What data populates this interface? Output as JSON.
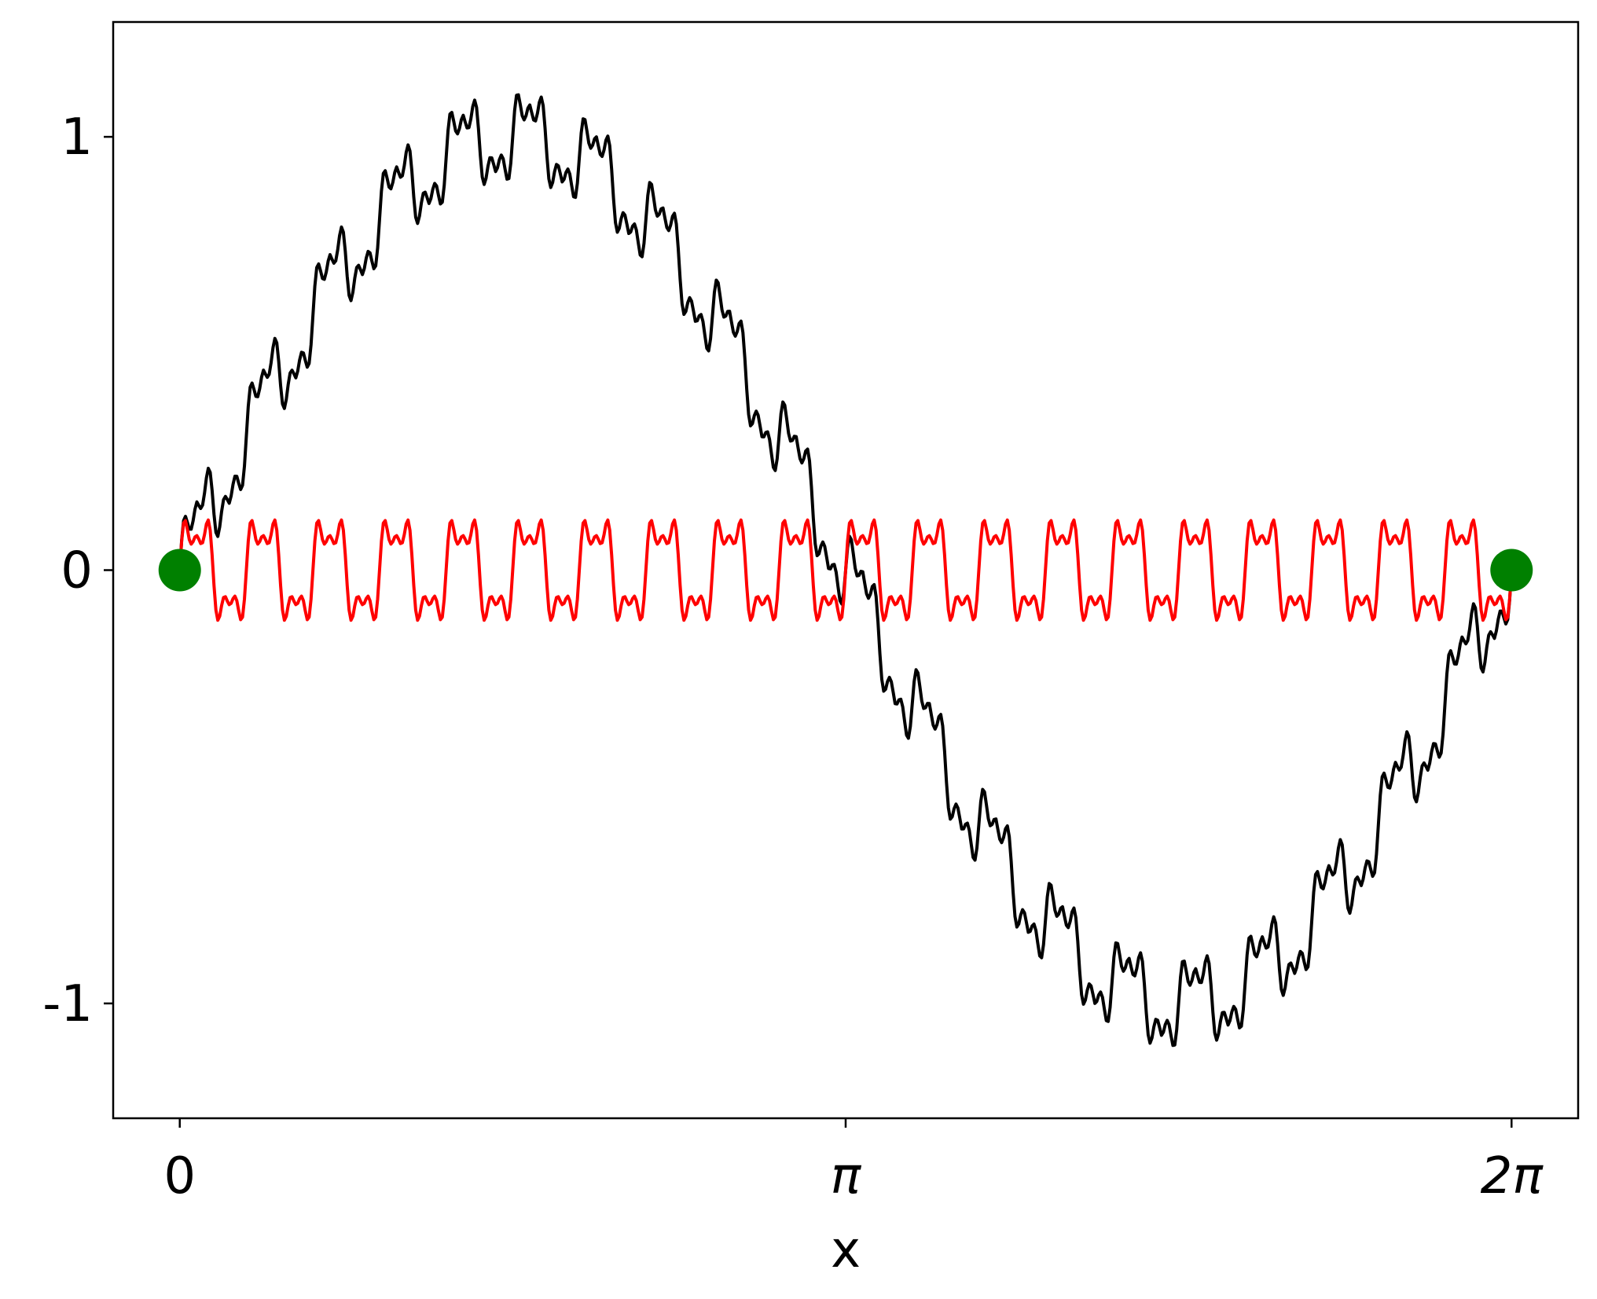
{
  "chart_data": {
    "type": "line",
    "title": "",
    "xlabel": "x",
    "ylabel": "",
    "xlim": [
      -0.3141592653589793,
      6.597344572538566
    ],
    "ylim": [
      -1.265,
      1.265
    ],
    "grid": false,
    "legend": "none",
    "x_ticks": [
      {
        "value": 0,
        "label": "0"
      },
      {
        "value": 3.141592653589793,
        "label": "π"
      },
      {
        "value": 6.283185307179586,
        "label": "2π"
      }
    ],
    "y_ticks": [
      {
        "value": 1,
        "label": "1"
      },
      {
        "value": 0,
        "label": "0"
      },
      {
        "value": -1,
        "label": "-1"
      }
    ],
    "series": [
      {
        "color": "#000000",
        "line_width": 2,
        "function": {
          "x_start": 0,
          "x_end": 6.283185307179586,
          "samples": 700,
          "terms": [
            {
              "kind": "sin",
              "amplitude": 1.0,
              "frequency": 1
            },
            {
              "kind": "triangle",
              "amplitude": 0.1,
              "frequency": 20
            },
            {
              "kind": "sin",
              "amplitude": 0.05,
              "frequency": 60
            },
            {
              "kind": "sin",
              "amplitude": 0.03,
              "frequency": 100
            }
          ]
        }
      },
      {
        "color": "#ff0000",
        "line_width": 2,
        "function": {
          "x_start": 0,
          "x_end": 6.283185307179586,
          "samples": 700,
          "terms": [
            {
              "kind": "sin",
              "amplitude": 0.1,
              "frequency": 20
            },
            {
              "kind": "sin",
              "amplitude": 0.05,
              "frequency": 60
            },
            {
              "kind": "sin",
              "amplitude": 0.03,
              "frequency": 100
            }
          ]
        }
      }
    ],
    "markers": [
      {
        "x": 0,
        "y": 0,
        "color": "#008000"
      },
      {
        "x": 6.283185307179586,
        "y": 0,
        "color": "#008000"
      }
    ]
  }
}
